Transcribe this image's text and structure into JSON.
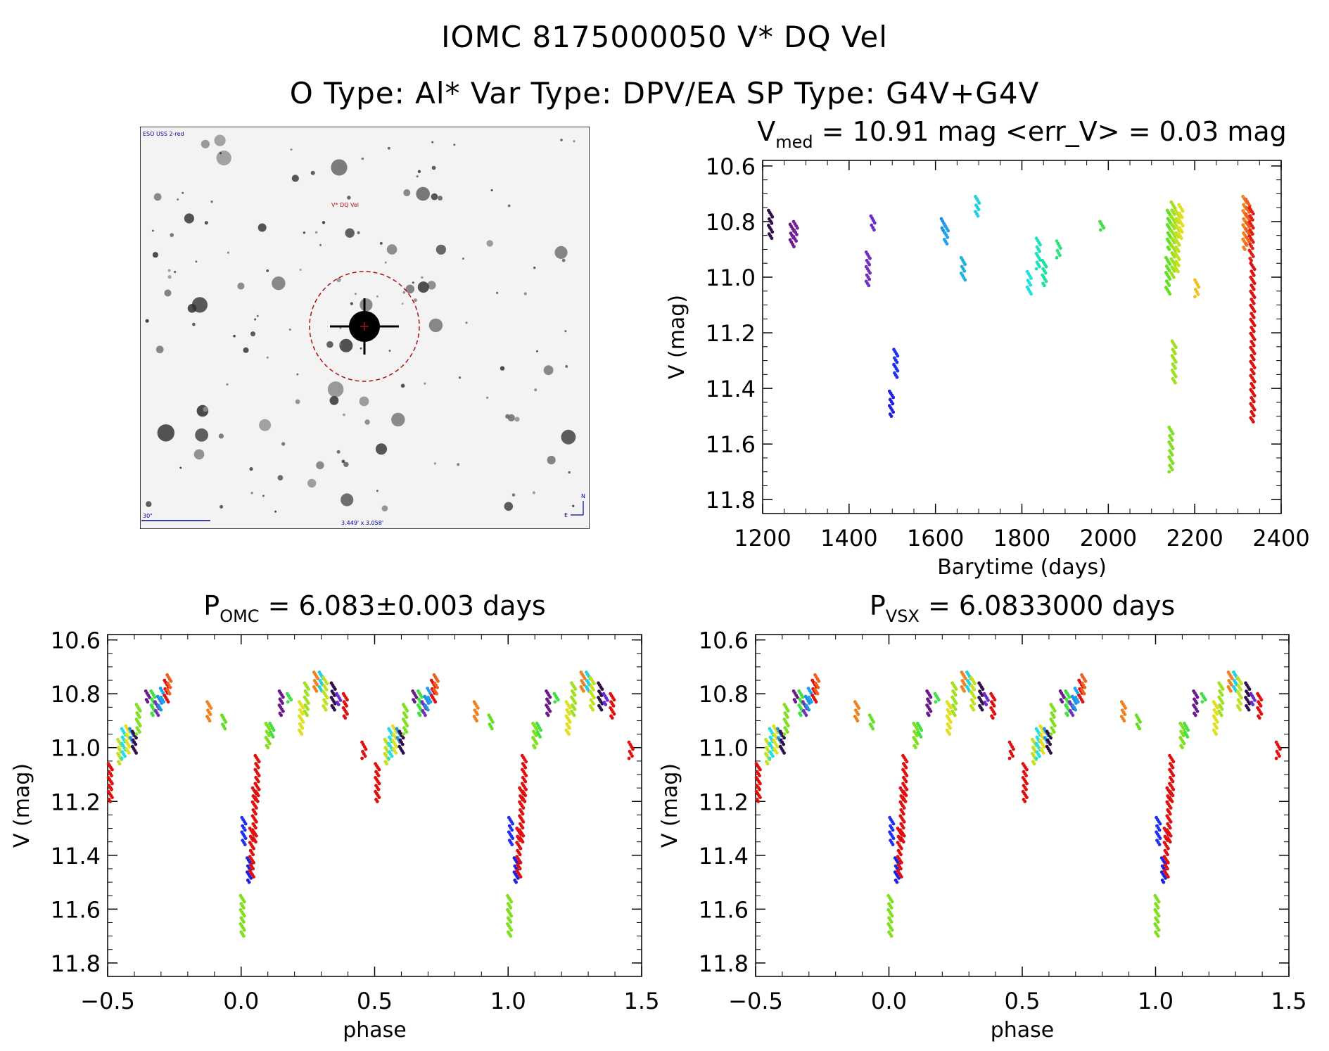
{
  "header": {
    "title_line1": "IOMC 8175000050    V* DQ Vel",
    "title_line2": "O Type: Al*  Var Type: DPV/EA  SP Type: G4V+G4V"
  },
  "finder_chart": {
    "survey_label": "ESO USS 2-red",
    "target_label": "V* DQ Vel",
    "scale_label": "30\"",
    "fov_label": "3.449' x 3.058'",
    "compass_north": "N",
    "compass_east": "E",
    "colors": {
      "target": "#b01010",
      "text": "#0000a0"
    }
  },
  "chart_data": [
    {
      "id": "lightcurve",
      "type": "scatter",
      "title_main": "V",
      "title_sub": "med",
      "title_rest": " = 10.91 mag <err_V> = 0.03 mag",
      "xlabel": "Barytime (days)",
      "ylabel": "V (mag)",
      "xlim": [
        1200,
        2400
      ],
      "ylim": [
        11.85,
        10.58
      ],
      "xticks": [
        "1200",
        "1400",
        "1600",
        "1800",
        "2000",
        "2200",
        "2400"
      ],
      "yticks": [
        "10.6",
        "10.8",
        "11.0",
        "11.2",
        "11.4",
        "11.6",
        "11.8"
      ],
      "groups": [
        {
          "x": 1218,
          "y": [
            10.76,
            10.86
          ],
          "color": "#30104a"
        },
        {
          "x": 1268,
          "y": [
            10.81,
            10.89
          ],
          "color": "#6a1a8a"
        },
        {
          "x": 1276,
          "y": [
            10.8,
            10.87
          ],
          "color": "#7a1ea0"
        },
        {
          "x": 1444,
          "y": [
            10.91,
            11.03
          ],
          "color": "#7030c0"
        },
        {
          "x": 1455,
          "y": [
            10.78,
            10.83
          ],
          "color": "#6a2ad0"
        },
        {
          "x": 1498,
          "y": [
            11.41,
            11.5
          ],
          "color": "#2020e0"
        },
        {
          "x": 1508,
          "y": [
            11.26,
            11.36
          ],
          "color": "#2030f0"
        },
        {
          "x": 1618,
          "y": [
            10.79,
            10.84
          ],
          "color": "#2090e0"
        },
        {
          "x": 1625,
          "y": [
            10.81,
            10.88
          ],
          "color": "#20a0f0"
        },
        {
          "x": 1664,
          "y": [
            10.93,
            11.01
          ],
          "color": "#20b0e0"
        },
        {
          "x": 1697,
          "y": [
            10.71,
            10.78
          ],
          "color": "#20d0e0"
        },
        {
          "x": 1817,
          "y": [
            10.98,
            11.06
          ],
          "color": "#20e0e0"
        },
        {
          "x": 1838,
          "y": [
            10.86,
            10.97
          ],
          "color": "#20e0c0"
        },
        {
          "x": 1852,
          "y": [
            10.94,
            11.03
          ],
          "color": "#20e0a0"
        },
        {
          "x": 1885,
          "y": [
            10.87,
            10.93
          ],
          "color": "#30e080"
        },
        {
          "x": 1985,
          "y": [
            10.8,
            10.83
          ],
          "color": "#40e040"
        },
        {
          "x": 2138,
          "y": [
            10.93,
            11.06
          ],
          "color": "#60e020"
        },
        {
          "x": 2141,
          "y": [
            10.76,
            10.9
          ],
          "color": "#60e020"
        },
        {
          "x": 2145,
          "y": [
            11.54,
            11.7
          ],
          "color": "#80e020"
        },
        {
          "x": 2150,
          "y": [
            10.73,
            11.0
          ],
          "color": "#a0e020"
        },
        {
          "x": 2152,
          "y": [
            11.23,
            11.38
          ],
          "color": "#a0e020"
        },
        {
          "x": 2160,
          "y": [
            10.76,
            10.98
          ],
          "color": "#c0e020"
        },
        {
          "x": 2168,
          "y": [
            10.74,
            10.86
          ],
          "color": "#e0e020"
        },
        {
          "x": 2205,
          "y": [
            11.01,
            11.07
          ],
          "color": "#f0c020"
        },
        {
          "x": 2316,
          "y": [
            10.71,
            10.9
          ],
          "color": "#f08020"
        },
        {
          "x": 2323,
          "y": [
            10.72,
            10.88
          ],
          "color": "#f06020"
        },
        {
          "x": 2331,
          "y": [
            10.75,
            10.94
          ],
          "color": "#e02010"
        },
        {
          "x": 2334,
          "y": [
            10.95,
            11.52
          ],
          "color": "#e01010"
        }
      ]
    },
    {
      "id": "phase_omc",
      "type": "scatter",
      "title_main": "P",
      "title_sub": "OMC",
      "title_rest": " = 6.083±0.003 days",
      "xlabel": "phase",
      "ylabel": "V (mag)",
      "xlim": [
        -0.5,
        1.5
      ],
      "ylim": [
        11.85,
        10.58
      ],
      "xticks": [
        "−0.5",
        "0.0",
        "0.5",
        "1.0",
        "1.5"
      ],
      "yticks": [
        "10.6",
        "10.8",
        "11.0",
        "11.2",
        "11.4",
        "11.6",
        "11.8"
      ]
    },
    {
      "id": "phase_vsx",
      "type": "scatter",
      "title_main": "P",
      "title_sub": "VSX",
      "title_rest": " = 6.0833000 days",
      "xlabel": "phase",
      "ylabel": "V (mag)",
      "xlim": [
        -0.5,
        1.5
      ],
      "ylim": [
        11.85,
        10.58
      ],
      "xticks": [
        "−0.5",
        "0.0",
        "0.5",
        "1.0",
        "1.5"
      ],
      "yticks": [
        "10.6",
        "10.8",
        "11.0",
        "11.2",
        "11.4",
        "11.6",
        "11.8"
      ]
    }
  ],
  "phase_groups": [
    {
      "p": -0.49,
      "y": [
        11.06,
        11.2
      ],
      "color": "#e01010"
    },
    {
      "p": -0.455,
      "y": [
        10.97,
        11.06
      ],
      "color": "#c0e020"
    },
    {
      "p": -0.44,
      "y": [
        10.93,
        11.04
      ],
      "color": "#20e0e0"
    },
    {
      "p": -0.425,
      "y": [
        10.92,
        11.02
      ],
      "color": "#e0e020"
    },
    {
      "p": -0.41,
      "y": [
        10.93,
        10.98
      ],
      "color": "#2090e0"
    },
    {
      "p": -0.4,
      "y": [
        10.94,
        11.02
      ],
      "color": "#30104a"
    },
    {
      "p": -0.385,
      "y": [
        10.84,
        10.95
      ],
      "color": "#80e020"
    },
    {
      "p": -0.35,
      "y": [
        10.79,
        10.83
      ],
      "color": "#6a1a8a"
    },
    {
      "p": -0.33,
      "y": [
        10.79,
        10.88
      ],
      "color": "#40e040"
    },
    {
      "p": -0.315,
      "y": [
        10.83,
        10.88
      ],
      "color": "#7030c0"
    },
    {
      "p": -0.305,
      "y": [
        10.81,
        10.86
      ],
      "color": "#2090e0"
    },
    {
      "p": -0.295,
      "y": [
        10.78,
        10.83
      ],
      "color": "#20a0f0"
    },
    {
      "p": -0.28,
      "y": [
        10.75,
        10.83
      ],
      "color": "#e01010"
    },
    {
      "p": -0.27,
      "y": [
        10.73,
        10.8
      ],
      "color": "#f06020"
    },
    {
      "p": -0.12,
      "y": [
        10.83,
        10.9
      ],
      "color": "#f08020"
    },
    {
      "p": -0.065,
      "y": [
        10.88,
        10.93
      ],
      "color": "#60e020"
    },
    {
      "p": 0.005,
      "y": [
        11.55,
        11.7
      ],
      "color": "#80e020"
    },
    {
      "p": 0.01,
      "y": [
        11.26,
        11.36
      ],
      "color": "#2030f0"
    },
    {
      "p": 0.03,
      "y": [
        11.41,
        11.5
      ],
      "color": "#2020e0"
    },
    {
      "p": 0.04,
      "y": [
        11.3,
        11.48
      ],
      "color": "#e01010"
    },
    {
      "p": 0.05,
      "y": [
        11.15,
        11.35
      ],
      "color": "#e01010"
    },
    {
      "p": 0.06,
      "y": [
        11.03,
        11.2
      ],
      "color": "#e01010"
    },
    {
      "p": 0.1,
      "y": [
        10.91,
        11.0
      ],
      "color": "#80e020"
    },
    {
      "p": 0.115,
      "y": [
        10.91,
        10.96
      ],
      "color": "#40e040"
    },
    {
      "p": 0.15,
      "y": [
        10.79,
        10.88
      ],
      "color": "#6a1a8a"
    },
    {
      "p": 0.18,
      "y": [
        10.8,
        10.83
      ],
      "color": "#40e040"
    },
    {
      "p": 0.225,
      "y": [
        10.83,
        10.95
      ],
      "color": "#e0e020"
    },
    {
      "p": 0.245,
      "y": [
        10.76,
        10.88
      ],
      "color": "#a0e020"
    },
    {
      "p": 0.28,
      "y": [
        10.72,
        10.79
      ],
      "color": "#f08020"
    },
    {
      "p": 0.3,
      "y": [
        10.72,
        10.79
      ],
      "color": "#20d0e0"
    },
    {
      "p": 0.315,
      "y": [
        10.74,
        10.86
      ],
      "color": "#c0e020"
    },
    {
      "p": 0.345,
      "y": [
        10.76,
        10.86
      ],
      "color": "#30104a"
    },
    {
      "p": 0.365,
      "y": [
        10.8,
        10.84
      ],
      "color": "#6a2ad0"
    },
    {
      "p": 0.39,
      "y": [
        10.8,
        10.89
      ],
      "color": "#e01010"
    },
    {
      "p": 0.46,
      "y": [
        10.98,
        11.04
      ],
      "color": "#e01010"
    }
  ]
}
